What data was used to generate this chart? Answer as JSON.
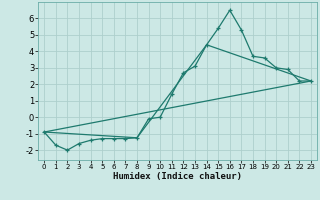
{
  "title": "",
  "xlabel": "Humidex (Indice chaleur)",
  "ylabel": "",
  "background_color": "#cce8e5",
  "grid_color": "#aecfcc",
  "line_color": "#1e7a6e",
  "xlim": [
    -0.5,
    23.5
  ],
  "ylim": [
    -2.6,
    7.0
  ],
  "yticks": [
    -2,
    -1,
    0,
    1,
    2,
    3,
    4,
    5,
    6
  ],
  "xticks": [
    0,
    1,
    2,
    3,
    4,
    5,
    6,
    7,
    8,
    9,
    10,
    11,
    12,
    13,
    14,
    15,
    16,
    17,
    18,
    19,
    20,
    21,
    22,
    23
  ],
  "series1_x": [
    0,
    1,
    2,
    3,
    4,
    5,
    6,
    7,
    8,
    9,
    10,
    11,
    12,
    13,
    14,
    15,
    16,
    17,
    18,
    19,
    20,
    21,
    22,
    23
  ],
  "series1_y": [
    -0.9,
    -1.7,
    -2.0,
    -1.6,
    -1.4,
    -1.3,
    -1.3,
    -1.3,
    -1.25,
    -0.1,
    0.0,
    1.4,
    2.7,
    3.1,
    4.4,
    5.4,
    6.5,
    5.3,
    3.7,
    3.6,
    3.0,
    2.9,
    2.2,
    2.2
  ],
  "series2_x": [
    0,
    23
  ],
  "series2_y": [
    -0.9,
    2.2
  ],
  "series3_x": [
    0,
    8,
    14,
    23
  ],
  "series3_y": [
    -0.9,
    -1.25,
    4.4,
    2.2
  ]
}
